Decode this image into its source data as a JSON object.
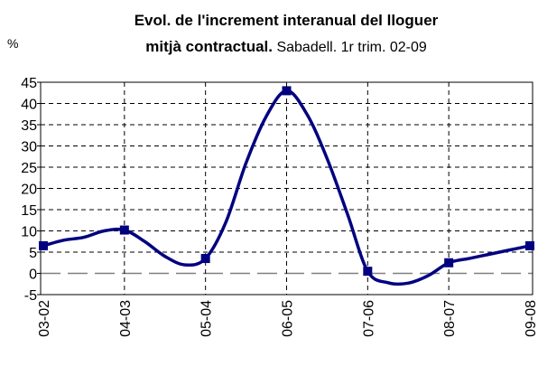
{
  "chart_data": {
    "type": "line",
    "title": [
      "Evol. de l'increment interanual del lloguer",
      "mitjà contractual."
    ],
    "subtitle": "Sabadell. 1r trim. 02-09",
    "y_label": "%",
    "categories": [
      "03-02",
      null,
      null,
      null,
      "04-03",
      null,
      null,
      null,
      "05-04",
      null,
      null,
      null,
      "06-05",
      null,
      null,
      null,
      "07-06",
      null,
      null,
      null,
      "08-07",
      null,
      null,
      null,
      "09-08"
    ],
    "series": [
      {
        "name": "Increment interanual",
        "color": "#000080",
        "values": [
          6.5,
          7.8,
          8.5,
          10,
          10.2,
          7.5,
          4,
          2,
          3.5,
          12,
          26,
          37,
          43,
          37.5,
          27,
          14,
          0.5,
          -2.2,
          -2.3,
          -0.5,
          2.5,
          3.5,
          4.5,
          5.5,
          6.5
        ]
      }
    ],
    "ylim": [
      -5,
      45
    ],
    "yticks": [
      -5,
      0,
      5,
      10,
      15,
      20,
      25,
      30,
      35,
      40,
      45
    ],
    "grid": true
  }
}
